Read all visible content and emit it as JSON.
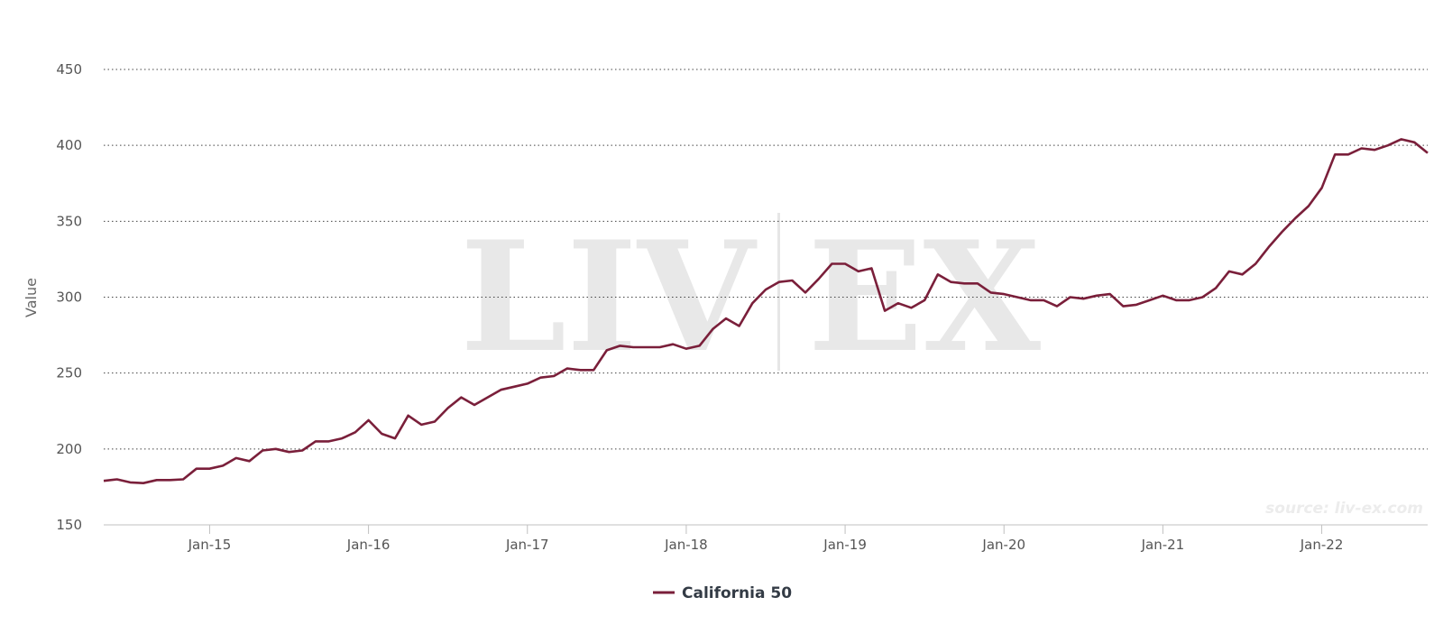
{
  "chart_data": {
    "type": "line",
    "ylabel": "Value",
    "ylim": [
      150,
      450
    ],
    "yticks": [
      150,
      200,
      250,
      300,
      350,
      400,
      450
    ],
    "xlim": [
      "2014-05",
      "2022-09"
    ],
    "xtick_labels": [
      "Jan-15",
      "Jan-16",
      "Jan-17",
      "Jan-18",
      "Jan-19",
      "Jan-20",
      "Jan-21",
      "Jan-22"
    ],
    "grid": "horizontal dotted",
    "legend_position": "bottom-center",
    "watermark_text": "LIV EX",
    "source_note": "source: liv-ex.com",
    "series": [
      {
        "name": "California 50",
        "color": "#7a1f3a",
        "start": "2014-05",
        "frequency": "monthly",
        "values": [
          179,
          180,
          178,
          177.5,
          179.5,
          179.5,
          180,
          187,
          187,
          189,
          194,
          192,
          199,
          200,
          198,
          199,
          205,
          205,
          207,
          211,
          219,
          210,
          207,
          222,
          216,
          218,
          227,
          234,
          229,
          234,
          239,
          241,
          243,
          247,
          248,
          253,
          252,
          252,
          265,
          268,
          267,
          267,
          267,
          269,
          266,
          268,
          279,
          286,
          281,
          296,
          305,
          310,
          311,
          303,
          312,
          322,
          322,
          317,
          319,
          291,
          296,
          293,
          298,
          315,
          310,
          309,
          309,
          303,
          302,
          300,
          298,
          298,
          294,
          300,
          299,
          301,
          302,
          294,
          295,
          298,
          301,
          298,
          298,
          300,
          306,
          317,
          315,
          322,
          333,
          343,
          352,
          360,
          372,
          394,
          394,
          398,
          397,
          400,
          404,
          402,
          395
        ]
      }
    ]
  }
}
